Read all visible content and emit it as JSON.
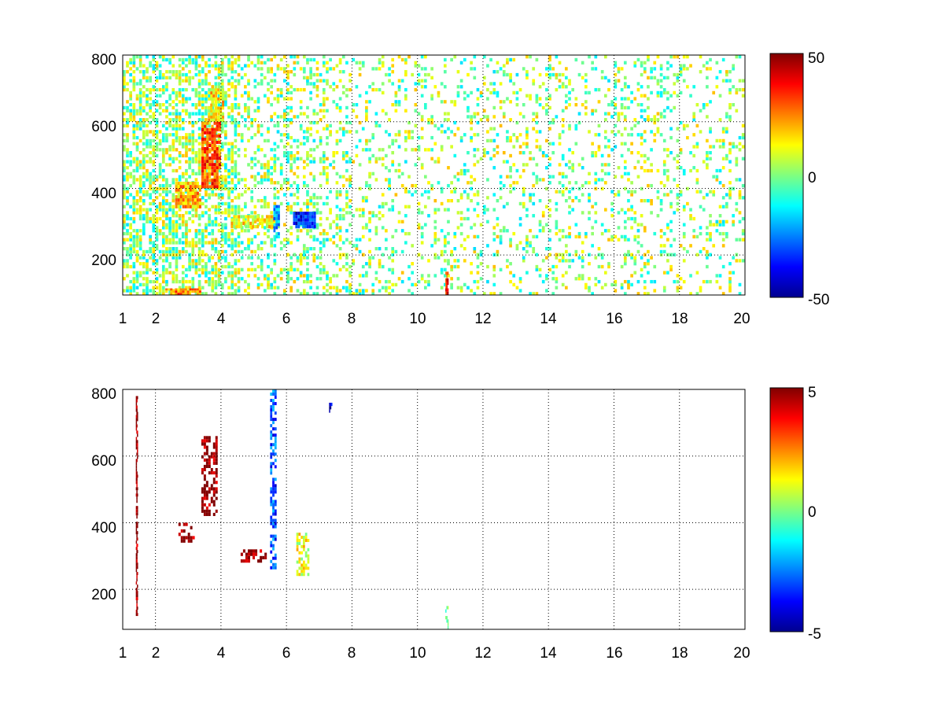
{
  "chart_data": [
    {
      "type": "heatmap",
      "title": "",
      "xlabel": "",
      "ylabel": "",
      "xlim": [
        1,
        20
      ],
      "ylim": [
        80,
        800
      ],
      "x_ticks": [
        1,
        2,
        4,
        6,
        8,
        10,
        12,
        14,
        16,
        18,
        20
      ],
      "y_ticks": [
        200,
        400,
        600,
        800
      ],
      "x_tick_labels": [
        "1",
        "2",
        "4",
        "6",
        "8",
        "10",
        "12",
        "14",
        "16",
        "18",
        "20"
      ],
      "y_tick_labels": [
        "200",
        "400",
        "600",
        "800"
      ],
      "grid": true,
      "colormap": "jet",
      "clim": [
        -50,
        50
      ],
      "colorbar_ticks": [
        50,
        0,
        -50
      ],
      "colorbar_tick_labels": [
        "50",
        "0",
        "-50"
      ],
      "features": [
        {
          "x": [
            2.6,
            3.4
          ],
          "y": [
            340,
            420
          ],
          "value": 20
        },
        {
          "x": [
            3.4,
            4.0
          ],
          "y": [
            400,
            600
          ],
          "value": 30
        },
        {
          "x": [
            4.3,
            5.8
          ],
          "y": [
            280,
            320
          ],
          "value": 12
        },
        {
          "x": [
            5.6,
            5.8
          ],
          "y": [
            250,
            350
          ],
          "value": -20
        },
        {
          "x": [
            6.2,
            6.9
          ],
          "y": [
            280,
            330
          ],
          "value": -35
        },
        {
          "x": [
            10.85,
            10.95
          ],
          "y": [
            80,
            150
          ],
          "value": 35
        },
        {
          "x": [
            2.3,
            3.4
          ],
          "y": [
            80,
            100
          ],
          "value": 25
        },
        {
          "x": [
            3.6,
            4.1
          ],
          "y": [
            600,
            700
          ],
          "value": 15
        }
      ]
    },
    {
      "type": "heatmap",
      "title": "",
      "xlabel": "",
      "ylabel": "",
      "xlim": [
        1,
        20
      ],
      "ylim": [
        80,
        800
      ],
      "x_ticks": [
        1,
        2,
        4,
        6,
        8,
        10,
        12,
        14,
        16,
        18,
        20
      ],
      "y_ticks": [
        200,
        400,
        600,
        800
      ],
      "x_tick_labels": [
        "1",
        "2",
        "4",
        "6",
        "8",
        "10",
        "12",
        "14",
        "16",
        "18",
        "20"
      ],
      "y_tick_labels": [
        "200",
        "400",
        "600",
        "800"
      ],
      "grid": true,
      "colormap": "jet",
      "clim": [
        -5,
        5
      ],
      "colorbar_ticks": [
        5,
        0,
        -5
      ],
      "colorbar_tick_labels": [
        "5",
        "0",
        "-5"
      ],
      "features": [
        {
          "x": [
            1.4,
            1.45
          ],
          "y": [
            120,
            780
          ],
          "value": 5
        },
        {
          "x": [
            2.7,
            3.2
          ],
          "y": [
            340,
            400
          ],
          "value": 5
        },
        {
          "x": [
            3.4,
            3.9
          ],
          "y": [
            420,
            660
          ],
          "value": 5
        },
        {
          "x": [
            4.6,
            5.4
          ],
          "y": [
            280,
            320
          ],
          "value": 5
        },
        {
          "x": [
            5.5,
            5.7
          ],
          "y": [
            260,
            800
          ],
          "value": -3
        },
        {
          "x": [
            6.3,
            6.7
          ],
          "y": [
            240,
            370
          ],
          "value": 1
        },
        {
          "x": [
            7.3,
            7.4
          ],
          "y": [
            730,
            760
          ],
          "value": -4
        },
        {
          "x": [
            10.85,
            10.95
          ],
          "y": [
            80,
            150
          ],
          "value": 0
        }
      ]
    }
  ]
}
